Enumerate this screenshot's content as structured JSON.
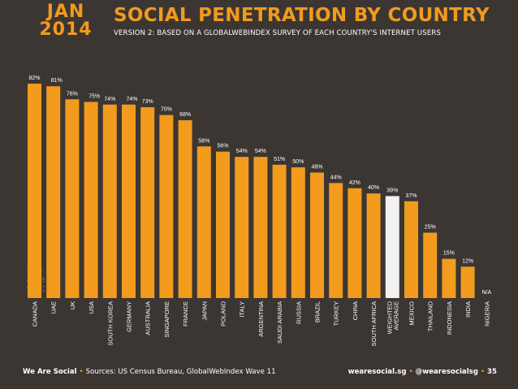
{
  "header": {
    "month": "JAN",
    "year": "2014",
    "title": "SOCIAL PENETRATION BY COUNTRY",
    "subtitle": "VERSION 2: BASED ON A GLOBALWEBINDEX SURVEY OF EACH COUNTRY'S INTERNET USERS"
  },
  "watermark": [
    "we",
    "are",
    "social"
  ],
  "footer": {
    "brand": "We Are Social",
    "sources": "Sources: US Census Bureau, GlobalWebIndex Wave 11",
    "site": "wearesocial.sg",
    "handle": "@wearesocialsg",
    "page": "35"
  },
  "colors": {
    "bar": "#f29b1d",
    "highlight": "#f2f2f2",
    "background": "#3c3633"
  },
  "chart_data": {
    "type": "bar",
    "categories": [
      "CANADA",
      "UAE",
      "UK",
      "USA",
      "SOUTH KOREA",
      "GERMANY",
      "AUSTRALIA",
      "SINGAPORE",
      "FRANCE",
      "JAPAN",
      "POLAND",
      "ITALY",
      "ARGENTINA",
      "SAUDI ARABIA",
      "RUSSIA",
      "BRAZIL",
      "TURKEY",
      "CHINA",
      "SOUTH AFRICA",
      "WEIGHTED AVERAGE",
      "MEXICO",
      "THAILAND",
      "INDONESIA",
      "INDIA",
      "NIGERIA"
    ],
    "values": [
      82,
      81,
      76,
      75,
      74,
      74,
      73,
      70,
      68,
      58,
      56,
      54,
      54,
      51,
      50,
      48,
      44,
      42,
      40,
      39,
      37,
      25,
      15,
      12,
      null
    ],
    "labels": [
      "82%",
      "81%",
      "76%",
      "75%",
      "74%",
      "74%",
      "73%",
      "70%",
      "68%",
      "58%",
      "56%",
      "54%",
      "54%",
      "51%",
      "50%",
      "48%",
      "44%",
      "42%",
      "40%",
      "39%",
      "37%",
      "25%",
      "15%",
      "12%",
      "N/A"
    ],
    "highlight_category": "WEIGHTED AVERAGE",
    "ylim": [
      0,
      82
    ]
  }
}
